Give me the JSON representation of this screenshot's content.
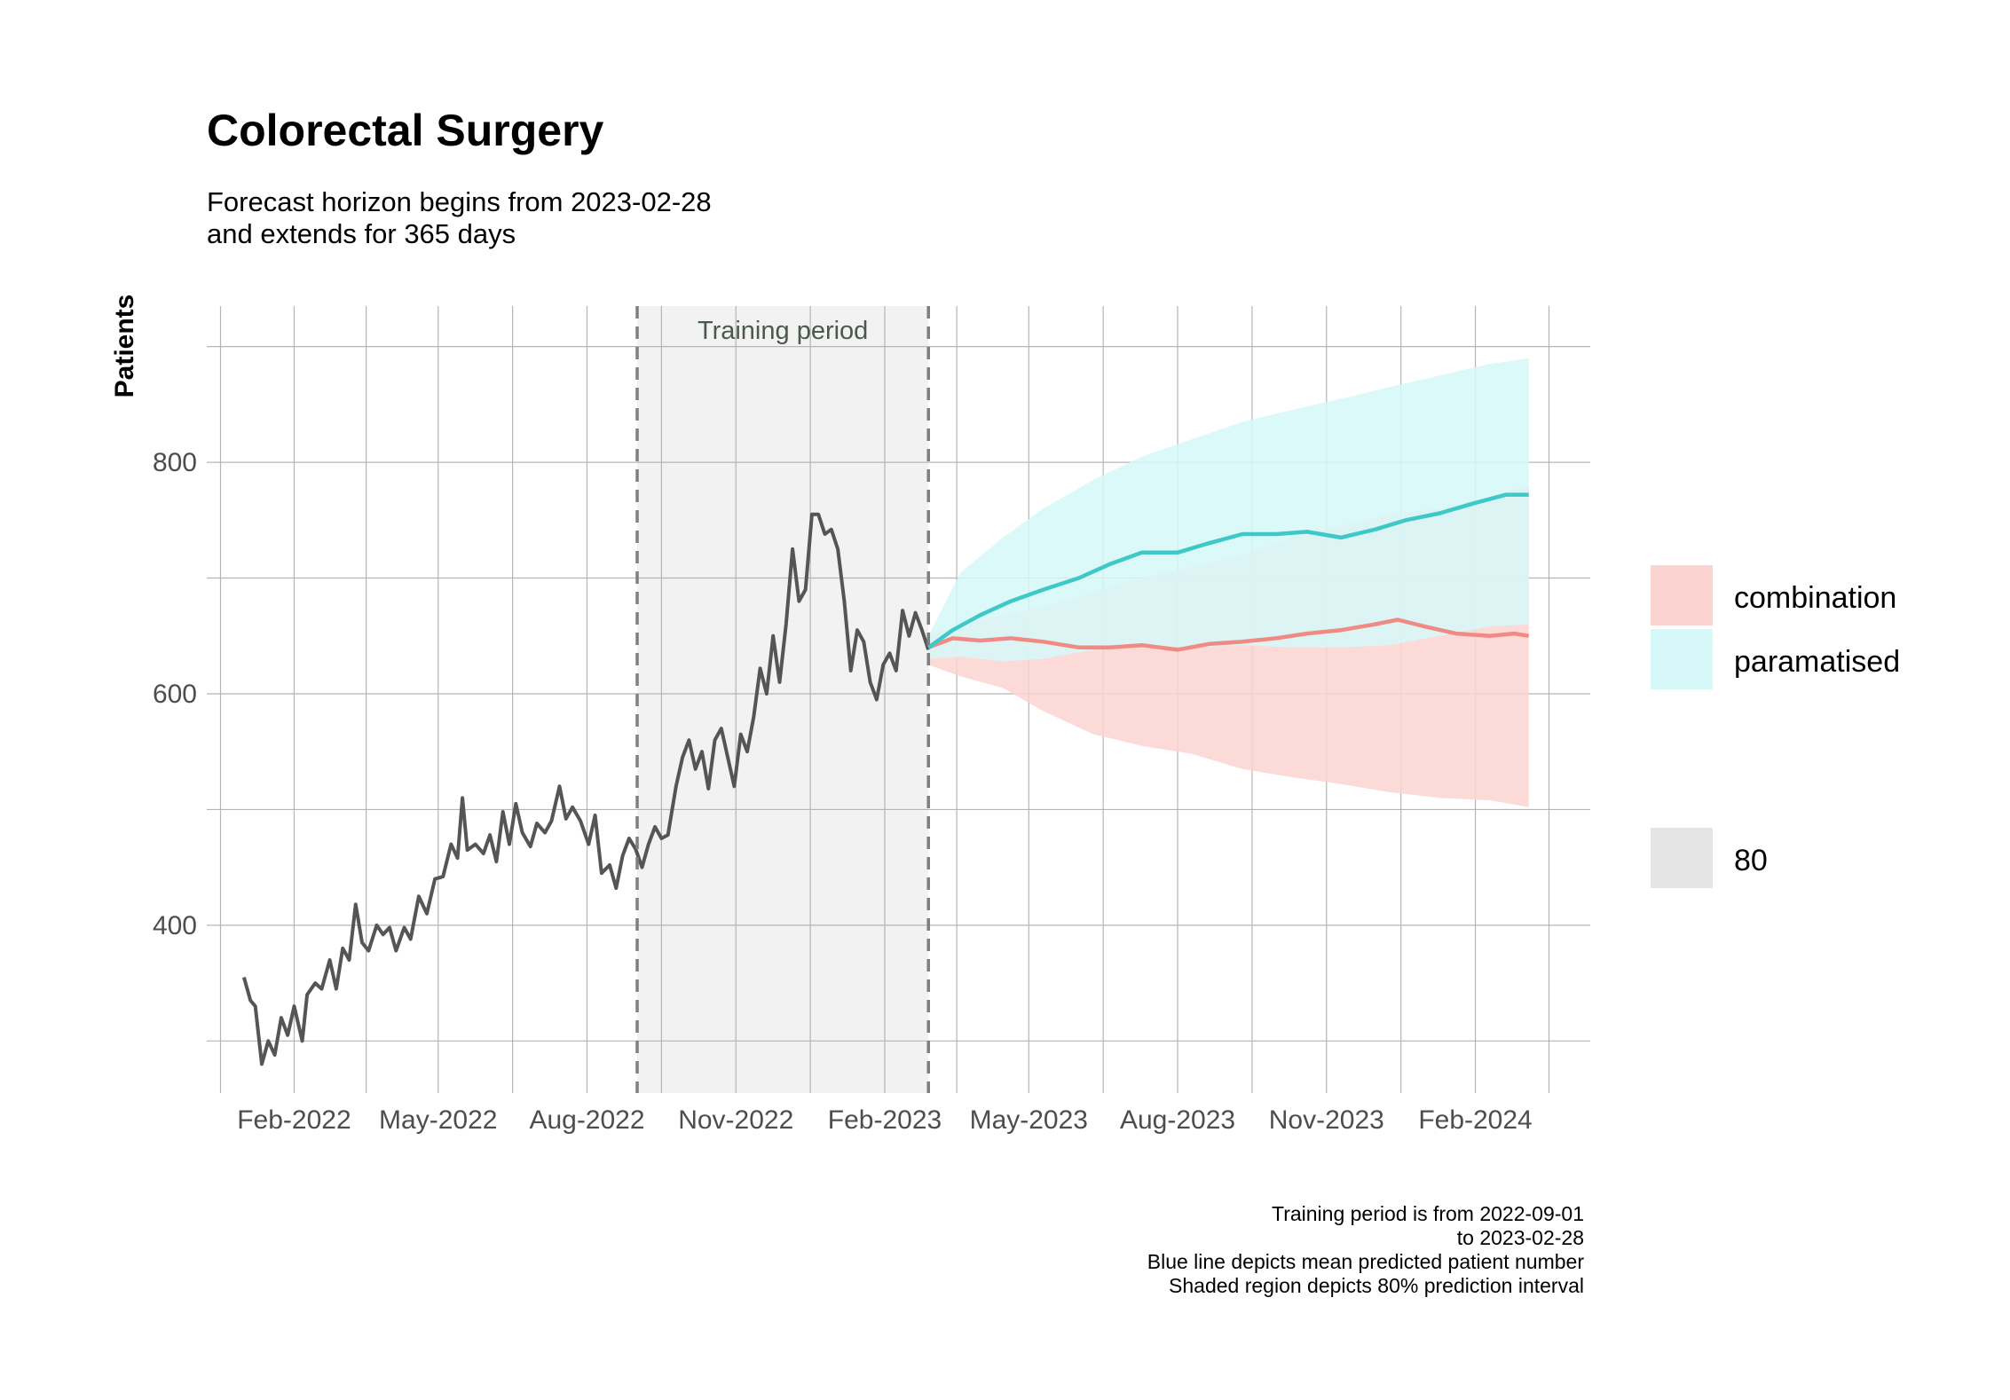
{
  "chart_data": {
    "type": "line",
    "title": "Colorectal Surgery",
    "subtitle": [
      "Forecast horizon begins from 2023-02-28",
      "and extends for 365 days"
    ],
    "ylabel": "Patients",
    "xlabel": "",
    "ylim": [
      255,
      935
    ],
    "xlim": [
      "2021-12-09",
      "2024-04-12"
    ],
    "y_ticks": [
      400,
      600,
      800
    ],
    "x_ticks": [
      {
        "label": "Feb-2022",
        "date": "2022-02-01"
      },
      {
        "label": "May-2022",
        "date": "2022-05-01"
      },
      {
        "label": "Aug-2022",
        "date": "2022-08-01"
      },
      {
        "label": "Nov-2022",
        "date": "2022-11-01"
      },
      {
        "label": "Feb-2023",
        "date": "2023-02-01"
      },
      {
        "label": "May-2023",
        "date": "2023-05-01"
      },
      {
        "label": "Aug-2023",
        "date": "2023-08-01"
      },
      {
        "label": "Nov-2023",
        "date": "2023-11-01"
      },
      {
        "label": "Feb-2024",
        "date": "2024-02-01"
      }
    ],
    "grid": true,
    "training_period": {
      "label": "Training period",
      "start": "2022-09-01",
      "end": "2023-02-28"
    },
    "observed": {
      "color": "#555555",
      "points": [
        [
          "2022-01-01",
          355
        ],
        [
          "2022-01-05",
          335
        ],
        [
          "2022-01-08",
          330
        ],
        [
          "2022-01-12",
          280
        ],
        [
          "2022-01-16",
          300
        ],
        [
          "2022-01-20",
          288
        ],
        [
          "2022-01-24",
          320
        ],
        [
          "2022-01-28",
          305
        ],
        [
          "2022-02-01",
          330
        ],
        [
          "2022-02-06",
          300
        ],
        [
          "2022-02-09",
          340
        ],
        [
          "2022-02-14",
          350
        ],
        [
          "2022-02-18",
          345
        ],
        [
          "2022-02-23",
          370
        ],
        [
          "2022-02-27",
          345
        ],
        [
          "2022-03-03",
          380
        ],
        [
          "2022-03-07",
          370
        ],
        [
          "2022-03-11",
          418
        ],
        [
          "2022-03-15",
          385
        ],
        [
          "2022-03-19",
          378
        ],
        [
          "2022-03-24",
          400
        ],
        [
          "2022-03-28",
          392
        ],
        [
          "2022-04-01",
          398
        ],
        [
          "2022-04-05",
          378
        ],
        [
          "2022-04-10",
          398
        ],
        [
          "2022-04-14",
          388
        ],
        [
          "2022-04-19",
          425
        ],
        [
          "2022-04-24",
          410
        ],
        [
          "2022-04-29",
          440
        ],
        [
          "2022-05-04",
          442
        ],
        [
          "2022-05-09",
          470
        ],
        [
          "2022-05-13",
          458
        ],
        [
          "2022-05-16",
          510
        ],
        [
          "2022-05-19",
          465
        ],
        [
          "2022-05-24",
          470
        ],
        [
          "2022-05-29",
          462
        ],
        [
          "2022-06-02",
          478
        ],
        [
          "2022-06-06",
          455
        ],
        [
          "2022-06-10",
          498
        ],
        [
          "2022-06-14",
          470
        ],
        [
          "2022-06-18",
          505
        ],
        [
          "2022-06-22",
          480
        ],
        [
          "2022-06-27",
          468
        ],
        [
          "2022-07-01",
          488
        ],
        [
          "2022-07-06",
          480
        ],
        [
          "2022-07-10",
          490
        ],
        [
          "2022-07-15",
          520
        ],
        [
          "2022-07-19",
          492
        ],
        [
          "2022-07-23",
          502
        ],
        [
          "2022-07-28",
          490
        ],
        [
          "2022-08-02",
          470
        ],
        [
          "2022-08-06",
          495
        ],
        [
          "2022-08-10",
          445
        ],
        [
          "2022-08-15",
          452
        ],
        [
          "2022-08-19",
          432
        ],
        [
          "2022-08-23",
          460
        ],
        [
          "2022-08-27",
          475
        ],
        [
          "2022-08-31",
          466
        ],
        [
          "2022-09-04",
          450
        ],
        [
          "2022-09-08",
          470
        ],
        [
          "2022-09-12",
          485
        ],
        [
          "2022-09-16",
          475
        ],
        [
          "2022-09-20",
          478
        ],
        [
          "2022-09-25",
          520
        ],
        [
          "2022-09-29",
          545
        ],
        [
          "2022-10-03",
          560
        ],
        [
          "2022-10-07",
          535
        ],
        [
          "2022-10-11",
          550
        ],
        [
          "2022-10-15",
          518
        ],
        [
          "2022-10-19",
          560
        ],
        [
          "2022-10-23",
          570
        ],
        [
          "2022-10-27",
          545
        ],
        [
          "2022-10-31",
          520
        ],
        [
          "2022-11-04",
          565
        ],
        [
          "2022-11-08",
          550
        ],
        [
          "2022-11-12",
          580
        ],
        [
          "2022-11-16",
          622
        ],
        [
          "2022-11-20",
          600
        ],
        [
          "2022-11-24",
          650
        ],
        [
          "2022-11-28",
          610
        ],
        [
          "2022-12-02",
          660
        ],
        [
          "2022-12-06",
          725
        ],
        [
          "2022-12-10",
          680
        ],
        [
          "2022-12-14",
          690
        ],
        [
          "2022-12-18",
          755
        ],
        [
          "2022-12-22",
          755
        ],
        [
          "2022-12-26",
          738
        ],
        [
          "2022-12-30",
          742
        ],
        [
          "2023-01-03",
          725
        ],
        [
          "2023-01-07",
          680
        ],
        [
          "2023-01-11",
          620
        ],
        [
          "2023-01-15",
          655
        ],
        [
          "2023-01-19",
          645
        ],
        [
          "2023-01-23",
          610
        ],
        [
          "2023-01-27",
          595
        ],
        [
          "2023-01-31",
          625
        ],
        [
          "2023-02-04",
          635
        ],
        [
          "2023-02-08",
          620
        ],
        [
          "2023-02-12",
          672
        ],
        [
          "2023-02-16",
          650
        ],
        [
          "2023-02-20",
          670
        ],
        [
          "2023-02-24",
          655
        ],
        [
          "2023-02-28",
          638
        ]
      ]
    },
    "series": [
      {
        "name": "combination",
        "color": "#f08a85",
        "band_color": "#fbd3d1",
        "interval": 80,
        "points": [
          [
            "2023-02-28",
            640
          ],
          [
            "2023-03-15",
            648
          ],
          [
            "2023-04-01",
            646
          ],
          [
            "2023-04-20",
            648
          ],
          [
            "2023-05-10",
            645
          ],
          [
            "2023-06-01",
            640
          ],
          [
            "2023-06-20",
            640
          ],
          [
            "2023-07-10",
            642
          ],
          [
            "2023-08-01",
            638
          ],
          [
            "2023-08-20",
            643
          ],
          [
            "2023-09-10",
            645
          ],
          [
            "2023-10-01",
            648
          ],
          [
            "2023-10-20",
            652
          ],
          [
            "2023-11-10",
            655
          ],
          [
            "2023-12-01",
            660
          ],
          [
            "2023-12-15",
            664
          ],
          [
            "2024-01-01",
            658
          ],
          [
            "2024-01-20",
            652
          ],
          [
            "2024-02-10",
            650
          ],
          [
            "2024-02-25",
            652
          ],
          [
            "2024-03-05",
            650
          ]
        ],
        "lower": [
          [
            "2023-02-28",
            625
          ],
          [
            "2023-03-20",
            615
          ],
          [
            "2023-04-15",
            605
          ],
          [
            "2023-05-10",
            585
          ],
          [
            "2023-06-10",
            565
          ],
          [
            "2023-07-10",
            555
          ],
          [
            "2023-08-10",
            548
          ],
          [
            "2023-09-10",
            535
          ],
          [
            "2023-10-10",
            528
          ],
          [
            "2023-11-10",
            522
          ],
          [
            "2023-12-10",
            515
          ],
          [
            "2024-01-10",
            510
          ],
          [
            "2024-02-10",
            508
          ],
          [
            "2024-03-05",
            502
          ]
        ],
        "upper": [
          [
            "2023-02-28",
            650
          ],
          [
            "2023-03-20",
            660
          ],
          [
            "2023-04-15",
            668
          ],
          [
            "2023-05-10",
            675
          ],
          [
            "2023-06-10",
            688
          ],
          [
            "2023-07-10",
            700
          ],
          [
            "2023-08-10",
            710
          ],
          [
            "2023-09-10",
            720
          ],
          [
            "2023-10-10",
            735
          ],
          [
            "2023-11-10",
            745
          ],
          [
            "2023-12-10",
            755
          ],
          [
            "2024-01-10",
            760
          ],
          [
            "2024-02-10",
            770
          ],
          [
            "2024-03-05",
            780
          ]
        ]
      },
      {
        "name": "paramatised",
        "color": "#3ec8c8",
        "band_color": "#d6f8f8",
        "interval": 80,
        "points": [
          [
            "2023-02-28",
            640
          ],
          [
            "2023-03-15",
            655
          ],
          [
            "2023-04-01",
            668
          ],
          [
            "2023-04-20",
            680
          ],
          [
            "2023-05-10",
            690
          ],
          [
            "2023-06-01",
            700
          ],
          [
            "2023-06-20",
            712
          ],
          [
            "2023-07-10",
            722
          ],
          [
            "2023-08-01",
            722
          ],
          [
            "2023-08-20",
            730
          ],
          [
            "2023-09-10",
            738
          ],
          [
            "2023-10-01",
            738
          ],
          [
            "2023-10-20",
            740
          ],
          [
            "2023-11-10",
            735
          ],
          [
            "2023-12-01",
            742
          ],
          [
            "2023-12-20",
            750
          ],
          [
            "2024-01-10",
            756
          ],
          [
            "2024-02-01",
            765
          ],
          [
            "2024-02-20",
            772
          ],
          [
            "2024-03-05",
            772
          ]
        ],
        "lower": [
          [
            "2023-02-28",
            630
          ],
          [
            "2023-03-20",
            632
          ],
          [
            "2023-04-15",
            628
          ],
          [
            "2023-05-10",
            630
          ],
          [
            "2023-06-10",
            638
          ],
          [
            "2023-07-10",
            642
          ],
          [
            "2023-08-10",
            640
          ],
          [
            "2023-09-10",
            642
          ],
          [
            "2023-10-10",
            640
          ],
          [
            "2023-11-10",
            640
          ],
          [
            "2023-12-10",
            642
          ],
          [
            "2024-01-10",
            650
          ],
          [
            "2024-02-10",
            658
          ],
          [
            "2024-03-05",
            660
          ]
        ],
        "upper": [
          [
            "2023-02-28",
            650
          ],
          [
            "2023-03-20",
            705
          ],
          [
            "2023-04-15",
            735
          ],
          [
            "2023-05-10",
            760
          ],
          [
            "2023-06-10",
            785
          ],
          [
            "2023-07-10",
            805
          ],
          [
            "2023-08-10",
            820
          ],
          [
            "2023-09-10",
            835
          ],
          [
            "2023-10-10",
            845
          ],
          [
            "2023-11-10",
            855
          ],
          [
            "2023-12-10",
            865
          ],
          [
            "2024-01-10",
            875
          ],
          [
            "2024-02-10",
            885
          ],
          [
            "2024-03-05",
            890
          ]
        ]
      }
    ],
    "legend": {
      "position": "right",
      "items": [
        {
          "label": "combination",
          "color": "#fbd3d1"
        },
        {
          "label": "paramatised",
          "color": "#d6f8f8"
        }
      ],
      "interval_item": {
        "label": "80",
        "color": "#e5e5e5"
      }
    },
    "caption": [
      "Training period is from 2022-09-01",
      "to 2023-02-28",
      "Blue line depicts mean predicted patient number",
      "Shaded region depicts 80% prediction interval"
    ]
  }
}
